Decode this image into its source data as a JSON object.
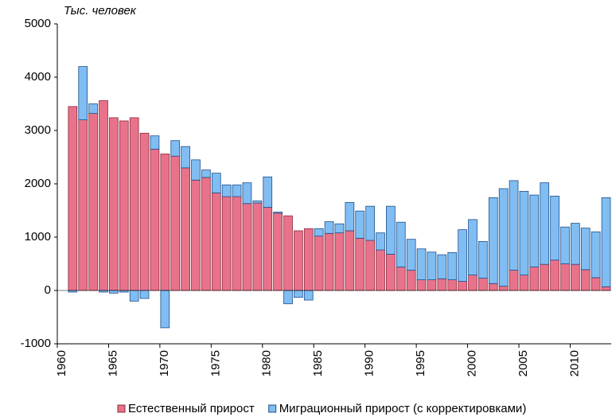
{
  "chart_data": {
    "type": "stacked_bar",
    "title": "Тыс. человек",
    "x": [
      1961,
      1962,
      1963,
      1964,
      1965,
      1966,
      1967,
      1968,
      1969,
      1970,
      1971,
      1972,
      1973,
      1974,
      1975,
      1976,
      1977,
      1978,
      1979,
      1980,
      1981,
      1982,
      1983,
      1984,
      1985,
      1986,
      1987,
      1988,
      1989,
      1990,
      1991,
      1992,
      1993,
      1994,
      1995,
      1996,
      1997,
      1998,
      1999,
      2000,
      2001,
      2002,
      2003,
      2004,
      2005,
      2006,
      2007,
      2008,
      2009,
      2010,
      2011,
      2012,
      2013
    ],
    "series": [
      {
        "name": "Естественный прирост",
        "color": "#e8728a",
        "stroke": "#8a2a3c",
        "values": [
          3450,
          3200,
          3320,
          3560,
          3240,
          3180,
          3240,
          2950,
          2650,
          2560,
          2520,
          2300,
          2070,
          2120,
          1830,
          1760,
          1760,
          1630,
          1640,
          1560,
          1450,
          1400,
          1120,
          1160,
          1020,
          1070,
          1080,
          1120,
          980,
          940,
          760,
          680,
          440,
          380,
          200,
          200,
          220,
          200,
          170,
          290,
          230,
          130,
          80,
          380,
          290,
          440,
          490,
          570,
          500,
          490,
          390,
          240,
          70
        ]
      },
      {
        "name": "Миграционный  прирост (с корректировками)",
        "color": "#80bdf2",
        "stroke": "#1f4f8a",
        "values": [
          -30,
          1000,
          180,
          -30,
          -50,
          -30,
          -200,
          -150,
          250,
          -700,
          290,
          400,
          380,
          140,
          370,
          220,
          220,
          390,
          40,
          570,
          20,
          -250,
          -130,
          -180,
          140,
          220,
          170,
          530,
          510,
          640,
          320,
          900,
          840,
          580,
          580,
          520,
          450,
          510,
          970,
          1040,
          690,
          1610,
          1830,
          1680,
          1570,
          1350,
          1530,
          1200,
          690,
          770,
          780,
          860,
          1670
        ]
      }
    ],
    "xlim": [
      1960,
      2014
    ],
    "xticks": [
      1960,
      1965,
      1970,
      1975,
      1980,
      1985,
      1990,
      1995,
      2000,
      2005,
      2010
    ],
    "ylim": [
      -1000,
      5000
    ],
    "yticks": [
      -1000,
      0,
      1000,
      2000,
      3000,
      4000,
      5000
    ],
    "legend": "bottom"
  }
}
